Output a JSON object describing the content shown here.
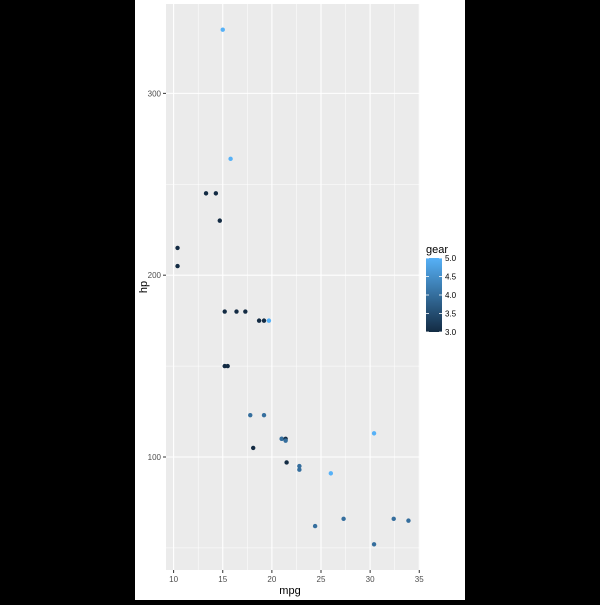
{
  "chart_data": {
    "type": "scatter",
    "title": "",
    "xlabel": "mpg",
    "ylabel": "hp",
    "xlim": [
      9.225,
      35.075
    ],
    "ylim": [
      37.85,
      349.15
    ],
    "x_ticks": [
      10,
      15,
      20,
      25,
      30,
      35
    ],
    "x_tick_labels": [
      "10",
      "15",
      "20",
      "25",
      "30",
      "35"
    ],
    "y_ticks": [
      100,
      200,
      300
    ],
    "y_tick_labels": [
      "100",
      "200",
      "300"
    ],
    "grid": true,
    "panel_background": "#EBEBEB",
    "grid_color": "#FFFFFF",
    "color_scale": {
      "name": "gear",
      "min": 3.0,
      "max": 5.0,
      "low_color": "#132B43",
      "high_color": "#56B1F7",
      "breaks": [
        3.0,
        3.5,
        4.0,
        4.5,
        5.0
      ],
      "break_labels": [
        "3.0",
        "3.5",
        "4.0",
        "4.5",
        "5.0"
      ]
    },
    "legend_position": "right",
    "points": [
      {
        "x": 21.0,
        "y": 110,
        "gear": 4
      },
      {
        "x": 21.0,
        "y": 110,
        "gear": 4
      },
      {
        "x": 22.8,
        "y": 93,
        "gear": 4
      },
      {
        "x": 21.4,
        "y": 110,
        "gear": 3
      },
      {
        "x": 18.7,
        "y": 175,
        "gear": 3
      },
      {
        "x": 18.1,
        "y": 105,
        "gear": 3
      },
      {
        "x": 14.3,
        "y": 245,
        "gear": 3
      },
      {
        "x": 24.4,
        "y": 62,
        "gear": 4
      },
      {
        "x": 22.8,
        "y": 95,
        "gear": 4
      },
      {
        "x": 19.2,
        "y": 123,
        "gear": 4
      },
      {
        "x": 17.8,
        "y": 123,
        "gear": 4
      },
      {
        "x": 16.4,
        "y": 180,
        "gear": 3
      },
      {
        "x": 17.3,
        "y": 180,
        "gear": 3
      },
      {
        "x": 15.2,
        "y": 180,
        "gear": 3
      },
      {
        "x": 10.4,
        "y": 205,
        "gear": 3
      },
      {
        "x": 10.4,
        "y": 215,
        "gear": 3
      },
      {
        "x": 14.7,
        "y": 230,
        "gear": 3
      },
      {
        "x": 32.4,
        "y": 66,
        "gear": 4
      },
      {
        "x": 30.4,
        "y": 52,
        "gear": 4
      },
      {
        "x": 33.9,
        "y": 65,
        "gear": 4
      },
      {
        "x": 21.5,
        "y": 97,
        "gear": 3
      },
      {
        "x": 15.5,
        "y": 150,
        "gear": 3
      },
      {
        "x": 15.2,
        "y": 150,
        "gear": 3
      },
      {
        "x": 13.3,
        "y": 245,
        "gear": 3
      },
      {
        "x": 19.2,
        "y": 175,
        "gear": 3
      },
      {
        "x": 27.3,
        "y": 66,
        "gear": 4
      },
      {
        "x": 26.0,
        "y": 91,
        "gear": 5
      },
      {
        "x": 30.4,
        "y": 113,
        "gear": 5
      },
      {
        "x": 15.8,
        "y": 264,
        "gear": 5
      },
      {
        "x": 19.7,
        "y": 175,
        "gear": 5
      },
      {
        "x": 15.0,
        "y": 335,
        "gear": 5
      },
      {
        "x": 21.4,
        "y": 109,
        "gear": 4
      }
    ]
  }
}
